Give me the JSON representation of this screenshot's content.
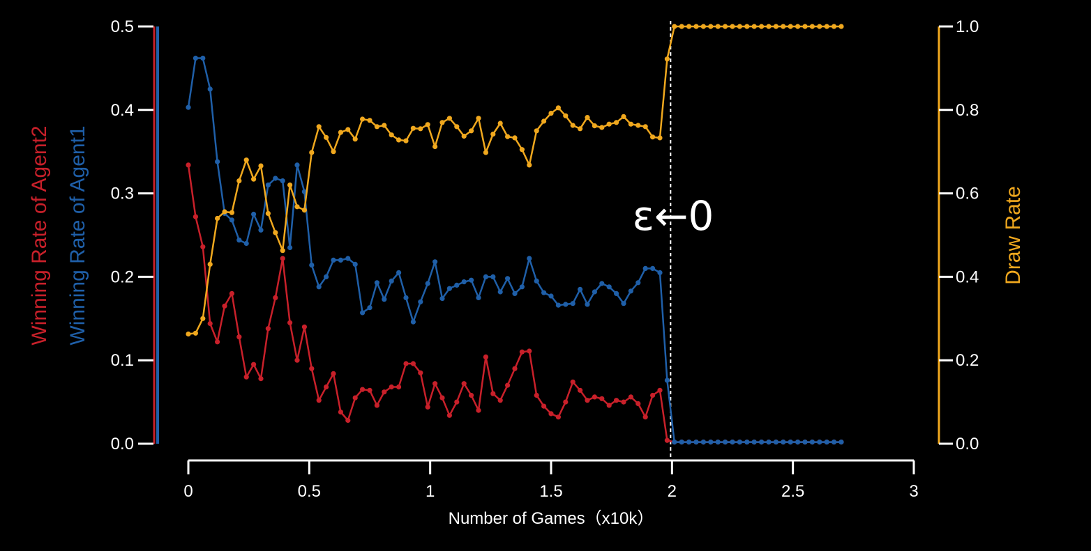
{
  "chart_data": {
    "type": "line",
    "xlabel": "Number of Games（x10k）",
    "ylabel_left_parts": [
      {
        "text": "Winning ",
        "series": "agent1"
      },
      {
        "text": "Rate ",
        "series": "agent2"
      },
      {
        "text": "of ",
        "series": "agent1"
      },
      {
        "text": "Agent1",
        "series": "agent1"
      }
    ],
    "ylabel_left_parts_alt": [
      {
        "text": "Winning ",
        "series": "agent2"
      },
      {
        "text": "Rate ",
        "series": "agent2"
      },
      {
        "text": "of ",
        "series": "agent2"
      },
      {
        "text": "Agent2",
        "series": "agent2"
      }
    ],
    "ylabel_left_agent2": "Winning Rate of Agent2",
    "ylabel_left_agent1": "Winning Rate of Agent1",
    "ylabel_right": "Draw Rate",
    "xlim": [
      0,
      3
    ],
    "ylim_left": [
      0,
      0.5
    ],
    "ylim_right": [
      0,
      1.0
    ],
    "xticks": [
      "0",
      "0.5",
      "1",
      "1.5",
      "2",
      "2.5",
      "3"
    ],
    "xtick_values": [
      0,
      0.5,
      1,
      1.5,
      2,
      2.5,
      3
    ],
    "yticks_left": [
      "0.0",
      "0.1",
      "0.2",
      "0.3",
      "0.4",
      "0.5"
    ],
    "yticks_left_values": [
      0,
      0.1,
      0.2,
      0.3,
      0.4,
      0.5
    ],
    "yticks_right": [
      "0.0",
      "0.2",
      "0.4",
      "0.6",
      "0.8",
      "1.0"
    ],
    "yticks_right_values": [
      0,
      0.2,
      0.4,
      0.6,
      0.8,
      1.0
    ],
    "grid": false,
    "colors": {
      "agent1": "#1f5fa8",
      "agent2": "#c8202a",
      "draw": "#f0a81e",
      "background": "#000000",
      "axis": "#ffffff"
    },
    "annotation": {
      "text": "ε←0",
      "x": 2.0
    },
    "x_step": 0.03,
    "series": [
      {
        "key": "agent1",
        "axis": "left",
        "values": [
          0.403,
          0.462,
          0.462,
          0.425,
          0.338,
          0.276,
          0.268,
          0.244,
          0.24,
          0.275,
          0.256,
          0.31,
          0.318,
          0.315,
          0.235,
          0.334,
          0.302,
          0.214,
          0.188,
          0.2,
          0.22,
          0.22,
          0.222,
          0.215,
          0.157,
          0.163,
          0.193,
          0.173,
          0.195,
          0.205,
          0.175,
          0.146,
          0.17,
          0.192,
          0.218,
          0.174,
          0.186,
          0.19,
          0.194,
          0.196,
          0.175,
          0.2,
          0.2,
          0.182,
          0.198,
          0.18,
          0.188,
          0.222,
          0.195,
          0.181,
          0.177,
          0.166,
          0.167,
          0.168,
          0.185,
          0.167,
          0.182,
          0.192,
          0.188,
          0.18,
          0.168,
          0.183,
          0.193,
          0.21,
          0.21,
          0.205,
          0.076,
          0.002,
          0.002,
          0.002,
          0.002,
          0.002,
          0.002,
          0.002,
          0.002,
          0.002,
          0.002,
          0.002,
          0.002,
          0.002,
          0.002,
          0.002,
          0.002,
          0.002,
          0.002,
          0.002,
          0.002,
          0.002,
          0.002,
          0.002,
          0.002
        ]
      },
      {
        "key": "agent2",
        "axis": "left",
        "values": [
          0.334,
          0.272,
          0.236,
          0.144,
          0.122,
          0.165,
          0.18,
          0.128,
          0.08,
          0.095,
          0.078,
          0.138,
          0.175,
          0.222,
          0.145,
          0.1,
          0.14,
          0.09,
          0.052,
          0.068,
          0.084,
          0.038,
          0.028,
          0.055,
          0.065,
          0.064,
          0.046,
          0.062,
          0.068,
          0.068,
          0.096,
          0.096,
          0.085,
          0.044,
          0.072,
          0.055,
          0.034,
          0.05,
          0.072,
          0.058,
          0.04,
          0.104,
          0.06,
          0.052,
          0.07,
          0.09,
          0.11,
          0.111,
          0.058,
          0.045,
          0.036,
          0.032,
          0.05,
          0.074,
          0.064,
          0.052,
          0.056,
          0.054,
          0.046,
          0.052,
          0.05,
          0.056,
          0.048,
          0.032,
          0.058,
          0.064,
          0.004,
          0.002,
          0.002,
          0.002,
          0.002,
          0.002,
          0.002,
          0.002,
          0.002,
          0.002,
          0.002,
          0.002,
          0.002,
          0.002,
          0.002,
          0.002,
          0.002,
          0.002,
          0.002,
          0.002,
          0.002,
          0.002,
          0.002,
          0.002,
          0.002
        ]
      },
      {
        "key": "draw",
        "axis": "right",
        "values": [
          0.263,
          0.265,
          0.3,
          0.43,
          0.54,
          0.556,
          0.554,
          0.63,
          0.68,
          0.634,
          0.666,
          0.552,
          0.506,
          0.463,
          0.62,
          0.568,
          0.56,
          0.698,
          0.76,
          0.734,
          0.7,
          0.746,
          0.753,
          0.73,
          0.778,
          0.775,
          0.76,
          0.763,
          0.74,
          0.728,
          0.726,
          0.756,
          0.755,
          0.765,
          0.712,
          0.77,
          0.78,
          0.76,
          0.737,
          0.75,
          0.78,
          0.698,
          0.742,
          0.768,
          0.736,
          0.733,
          0.705,
          0.668,
          0.75,
          0.773,
          0.792,
          0.805,
          0.786,
          0.763,
          0.755,
          0.782,
          0.762,
          0.758,
          0.766,
          0.77,
          0.784,
          0.766,
          0.763,
          0.76,
          0.735,
          0.733,
          0.922,
          1.0,
          1.0,
          1.0,
          1.0,
          1.0,
          1.0,
          1.0,
          1.0,
          1.0,
          1.0,
          1.0,
          1.0,
          1.0,
          1.0,
          1.0,
          1.0,
          1.0,
          1.0,
          1.0,
          1.0,
          1.0,
          1.0,
          1.0,
          1.0
        ]
      }
    ]
  }
}
